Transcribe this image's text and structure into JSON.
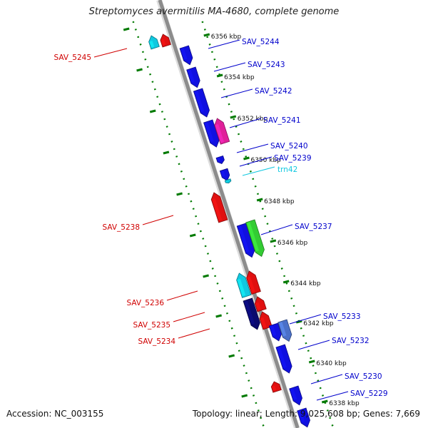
{
  "title": "Streptomyces avermitilis MA-4680, complete genome",
  "footer": {
    "accession": "Accession: NC_003155",
    "summary": "Topology: linear; Length: 9,025,608 bp; Genes: 7,669"
  },
  "colors": {
    "backbone": "#8c8c8c",
    "forward_gene": "#1010e0",
    "reverse_gene": "#e01010",
    "forward_label": "#0000cc",
    "reverse_label": "#d00000",
    "trna": "#10c8e0",
    "highlight_green": "#33cc33",
    "highlight_magenta": "#e0209a",
    "dark_navy": "#0a0a6e",
    "ruler": "#007a00"
  },
  "ruler_ticks": [
    "6356 kbp",
    "6354 kbp",
    "6352 kbp",
    "6350 kbp",
    "6348 kbp",
    "6346 kbp",
    "6344 kbp",
    "6342 kbp",
    "6340 kbp",
    "6338 kbp"
  ],
  "genes": [
    {
      "label": "SAV_5245",
      "strand": "reverse"
    },
    {
      "label": "SAV_5244",
      "strand": "forward"
    },
    {
      "label": "SAV_5243",
      "strand": "forward"
    },
    {
      "label": "SAV_5242",
      "strand": "forward"
    },
    {
      "label": "SAV_5241",
      "strand": "forward"
    },
    {
      "label": "SAV_5240",
      "strand": "forward"
    },
    {
      "label": "SAV_5239",
      "strand": "forward"
    },
    {
      "label": "trn42",
      "strand": "forward"
    },
    {
      "label": "SAV_5238",
      "strand": "reverse"
    },
    {
      "label": "SAV_5237",
      "strand": "forward"
    },
    {
      "label": "SAV_5236",
      "strand": "reverse"
    },
    {
      "label": "SAV_5235",
      "strand": "reverse"
    },
    {
      "label": "SAV_5234",
      "strand": "reverse"
    },
    {
      "label": "SAV_5233",
      "strand": "forward"
    },
    {
      "label": "SAV_5232",
      "strand": "forward"
    },
    {
      "label": "SAV_5230",
      "strand": "forward"
    },
    {
      "label": "SAV_5229",
      "strand": "forward"
    }
  ]
}
